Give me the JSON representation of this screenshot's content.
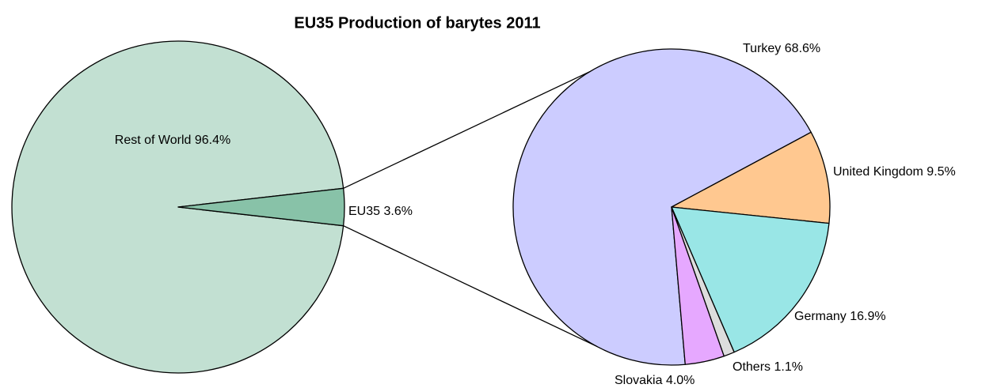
{
  "chart_data": [
    {
      "type": "pie",
      "title": "EU35 Production of barytes 2011",
      "categories": [
        "Rest of World",
        "EU35"
      ],
      "values": [
        96.4,
        3.6
      ],
      "value_labels": [
        "96.4%",
        "3.6%"
      ],
      "colors": [
        "#c2e0d2",
        "#88c2a8"
      ]
    },
    {
      "type": "pie",
      "categories": [
        "Turkey",
        "United Kingdom",
        "Germany",
        "Others",
        "Slovakia"
      ],
      "values": [
        68.6,
        9.5,
        16.9,
        1.1,
        4.0
      ],
      "value_labels": [
        "68.6%",
        "9.5%",
        "16.9%",
        "1.1%",
        "4.0%"
      ],
      "colors": [
        "#ccccff",
        "#ffc890",
        "#99e6e6",
        "#dddddd",
        "#e6a8ff"
      ]
    }
  ]
}
